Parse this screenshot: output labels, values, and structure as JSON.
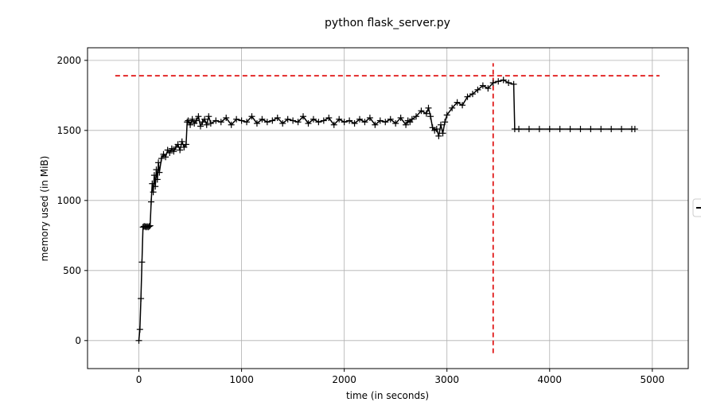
{
  "chart_data": {
    "type": "line",
    "title": "python flask_server.py",
    "xlabel": "time (in seconds)",
    "ylabel": "memory used (in MiB)",
    "xlim": [
      -500,
      5350
    ],
    "ylim": [
      -200,
      2090
    ],
    "xticks": [
      0,
      1000,
      2000,
      3000,
      4000,
      5000
    ],
    "yticks": [
      0,
      500,
      1000,
      1500,
      2000
    ],
    "grid": true,
    "marker": "+",
    "series": [
      {
        "color": "#000000",
        "x": [
          0,
          10,
          20,
          30,
          40,
          50,
          60,
          70,
          80,
          90,
          100,
          110,
          120,
          130,
          140,
          150,
          160,
          170,
          180,
          190,
          200,
          220,
          240,
          260,
          280,
          300,
          320,
          340,
          360,
          380,
          400,
          420,
          440,
          460,
          470,
          480,
          500,
          520,
          540,
          560,
          580,
          600,
          620,
          640,
          660,
          680,
          700,
          750,
          800,
          850,
          900,
          950,
          1000,
          1050,
          1100,
          1150,
          1200,
          1250,
          1300,
          1350,
          1400,
          1450,
          1500,
          1550,
          1600,
          1650,
          1700,
          1750,
          1800,
          1850,
          1900,
          1950,
          2000,
          2050,
          2100,
          2150,
          2200,
          2250,
          2300,
          2350,
          2400,
          2450,
          2500,
          2550,
          2600,
          2620,
          2640,
          2660,
          2700,
          2750,
          2800,
          2820,
          2840,
          2860,
          2880,
          2900,
          2920,
          2940,
          2960,
          2980,
          3000,
          3050,
          3100,
          3150,
          3200,
          3250,
          3300,
          3350,
          3400,
          3450,
          3500,
          3550,
          3600,
          3650,
          3660,
          3700,
          3800,
          3900,
          4000,
          4100,
          4200,
          4300,
          4400,
          4500,
          4600,
          4700,
          4800,
          4830
        ],
        "y": [
          0,
          80,
          300,
          560,
          810,
          815,
          815,
          810,
          815,
          810,
          815,
          820,
          990,
          1120,
          1060,
          1180,
          1100,
          1220,
          1150,
          1270,
          1200,
          1300,
          1330,
          1310,
          1360,
          1340,
          1370,
          1350,
          1380,
          1400,
          1360,
          1420,
          1380,
          1400,
          1560,
          1570,
          1540,
          1580,
          1550,
          1570,
          1600,
          1530,
          1560,
          1580,
          1540,
          1600,
          1550,
          1570,
          1560,
          1590,
          1540,
          1580,
          1570,
          1560,
          1600,
          1550,
          1580,
          1560,
          1570,
          1590,
          1550,
          1580,
          1570,
          1560,
          1600,
          1550,
          1580,
          1560,
          1570,
          1590,
          1540,
          1580,
          1560,
          1570,
          1550,
          1580,
          1560,
          1590,
          1540,
          1570,
          1560,
          1580,
          1550,
          1590,
          1540,
          1570,
          1560,
          1580,
          1600,
          1640,
          1620,
          1660,
          1600,
          1520,
          1500,
          1510,
          1460,
          1540,
          1480,
          1560,
          1610,
          1660,
          1700,
          1680,
          1740,
          1760,
          1790,
          1820,
          1800,
          1840,
          1850,
          1860,
          1840,
          1830,
          1510,
          1510,
          1510,
          1510,
          1510,
          1510,
          1510,
          1510,
          1510,
          1510,
          1510,
          1510,
          1510,
          1510
        ]
      }
    ],
    "reference_lines": [
      {
        "orientation": "horizontal",
        "value": 1890,
        "from": -230,
        "to": 5070,
        "color": "#dd0000",
        "style": "dashed"
      },
      {
        "orientation": "vertical",
        "value": 3450,
        "from": -90,
        "to": 1980,
        "color": "#dd0000",
        "style": "dashed"
      }
    ]
  }
}
